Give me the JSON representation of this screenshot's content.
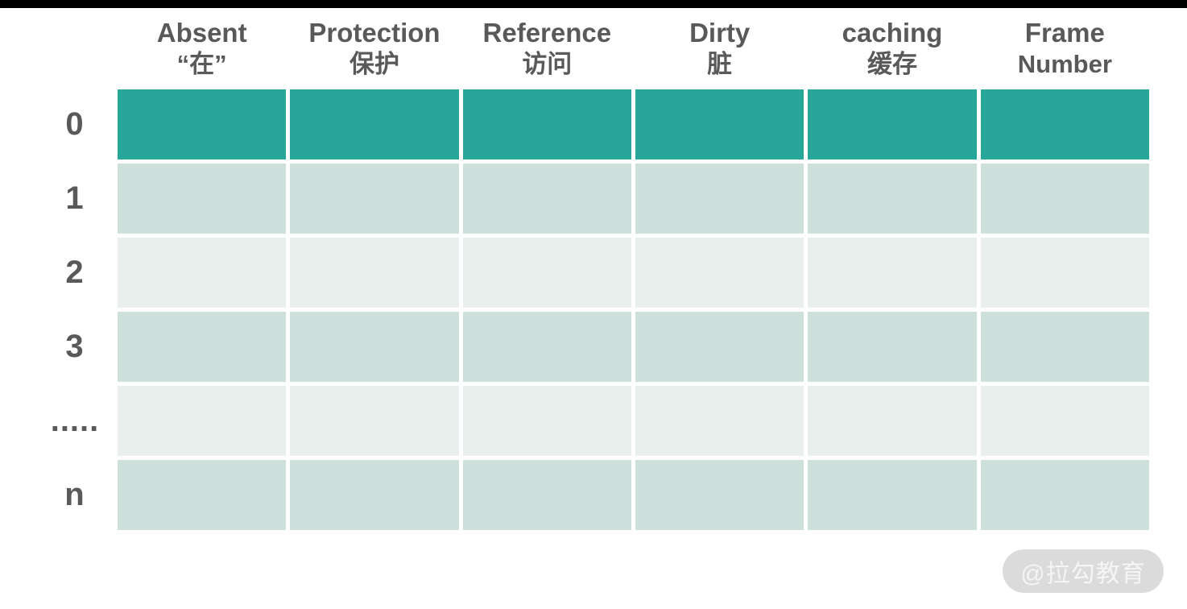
{
  "colors": {
    "topbar": "#000000",
    "text": "#595959",
    "accent-teal": "#27a699",
    "row-medium": "#cee0dc",
    "row-light": "#e8efed",
    "watermark-bg": "#dbdbdb",
    "watermark-text": "#f5f5f5"
  },
  "table": {
    "columns": [
      {
        "line1": "Absent",
        "line2": "“在”"
      },
      {
        "line1": "Protection",
        "line2": "保护"
      },
      {
        "line1": "Reference",
        "line2": "访问"
      },
      {
        "line1": "Dirty",
        "line2": "脏"
      },
      {
        "line1": "caching",
        "line2": "缓存"
      },
      {
        "line1": "Frame",
        "line2": "Number"
      }
    ],
    "rows": [
      {
        "label": "0",
        "color": "#27a699"
      },
      {
        "label": "1",
        "color": "#cee0dc"
      },
      {
        "label": "2",
        "color": "#e8efed"
      },
      {
        "label": "3",
        "color": "#cee0dc"
      },
      {
        "label": ".....",
        "color": "#e8efed"
      },
      {
        "label": "n",
        "color": "#cee0dc"
      }
    ]
  },
  "watermark": {
    "text": "@拉勾教育"
  }
}
